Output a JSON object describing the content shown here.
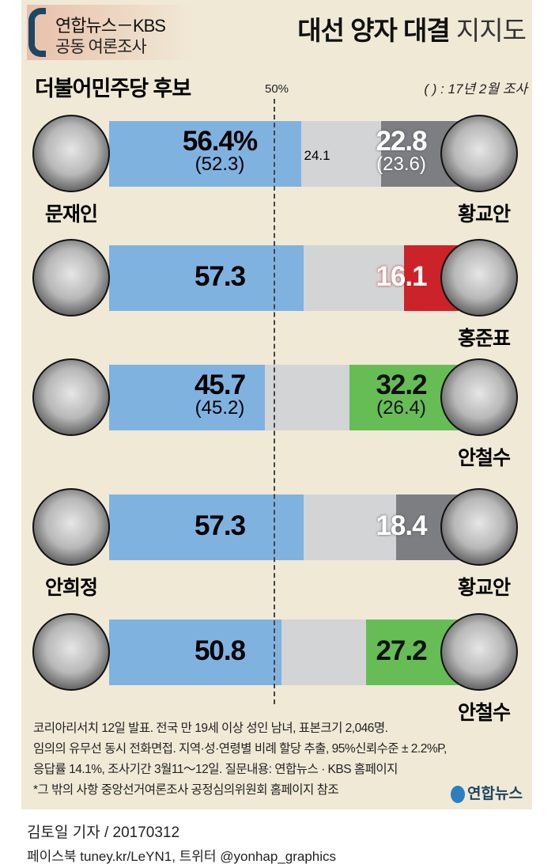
{
  "header": {
    "badge_line1": "연합뉴스－KBS",
    "badge_line2": "공동 여론조사",
    "title_bold": "대선 양자 대결",
    "title_light": "지지도",
    "party": "더불어민주당 후보",
    "fifty_label": "50%",
    "note": "( ) : 17년 2월 조사"
  },
  "chart_data": {
    "type": "bar",
    "stacked": true,
    "reference_line": 50,
    "colors": {
      "democratic": "#80b2e0",
      "undecided": "#d3d4d6",
      "hwang": "#7d7e82",
      "hong": "#cc2229",
      "ahn": "#66bd56"
    },
    "matchups": [
      {
        "left": "문재인",
        "left_value": 56.4,
        "left_label": "56.4%",
        "left_prev": "(52.3)",
        "undecided": 24.1,
        "undecided_label": "24.1",
        "right": "황교안",
        "right_value": 22.8,
        "right_label": "22.8",
        "right_prev": "(23.6)",
        "right_color": "hwang"
      },
      {
        "left": "",
        "left_value": 57.3,
        "left_label": "57.3",
        "left_prev": "",
        "right": "홍준표",
        "right_value": 16.1,
        "right_label": "16.1",
        "right_prev": "",
        "right_color": "hong"
      },
      {
        "left": "",
        "left_value": 45.7,
        "left_label": "45.7",
        "left_prev": "(45.2)",
        "right": "안철수",
        "right_value": 32.2,
        "right_label": "32.2",
        "right_prev": "(26.4)",
        "right_color": "ahn"
      },
      {
        "left": "안희정",
        "left_value": 57.3,
        "left_label": "57.3",
        "left_prev": "",
        "right": "황교안",
        "right_value": 18.4,
        "right_label": "18.4",
        "right_prev": "",
        "right_color": "hwang"
      },
      {
        "left": "",
        "left_value": 50.8,
        "left_label": "50.8",
        "left_prev": "",
        "right": "안철수",
        "right_value": 27.2,
        "right_label": "27.2",
        "right_prev": "",
        "right_color": "ahn"
      }
    ]
  },
  "footer": {
    "lines": [
      "코리아리서치 12일 발표. 전국 만 19세 이상 성인 남녀, 표본크기 2,046명.",
      "임의의 유무선 동시 전화면접. 지역·성·연령별 비례 할당 추출, 95%신뢰수준 ± 2.2%P,",
      "응답률 14.1%, 조사기간 3월11～12일.  질문내용: 연합뉴스 · KBS 홈페이지",
      "*그 밖의 사항 중앙선거여론조사 공정심의위원회 홈페이지 참조"
    ],
    "logo": "연합뉴스",
    "credit": "김토일 기자 / 20170312",
    "social": "페이스북 tuney.kr/LeYN1, 트위터 @yonhap_graphics"
  }
}
